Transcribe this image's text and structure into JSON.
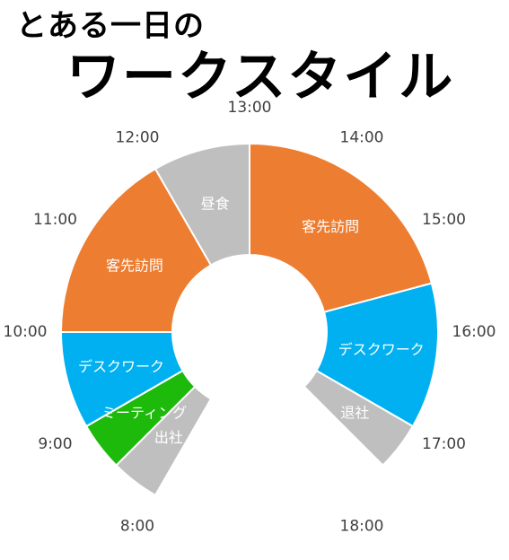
{
  "header": {
    "title_line1": "とある一日の",
    "title_line2": "ワークスタイル"
  },
  "chart_data": {
    "type": "pie",
    "variant": "donut",
    "title": "とある一日のワークスタイル",
    "start_hour": 8,
    "end_hour": 18,
    "tick_labels": [
      "8:00",
      "9:00",
      "10:00",
      "11:00",
      "12:00",
      "13:00",
      "14:00",
      "15:00",
      "16:00",
      "17:00",
      "18:00"
    ],
    "segments": [
      {
        "label": "出社",
        "start": 8.0,
        "end": 8.5,
        "color": "#BFBFBF"
      },
      {
        "label": "ミーティング",
        "start": 8.5,
        "end": 9.0,
        "color": "#1DBA0B"
      },
      {
        "label": "デスクワーク",
        "start": 9.0,
        "end": 10.0,
        "color": "#00B0F0"
      },
      {
        "label": "客先訪問",
        "start": 10.0,
        "end": 12.0,
        "color": "#ED7D31"
      },
      {
        "label": "昼食",
        "start": 12.0,
        "end": 13.0,
        "color": "#BFBFBF"
      },
      {
        "label": "客先訪問",
        "start": 13.0,
        "end": 15.5,
        "color": "#ED7D31"
      },
      {
        "label": "デスクワーク",
        "start": 15.5,
        "end": 17.0,
        "color": "#00B0F0"
      },
      {
        "label": "退社",
        "start": 17.0,
        "end": 17.5,
        "color": "#BFBFBF"
      }
    ]
  }
}
